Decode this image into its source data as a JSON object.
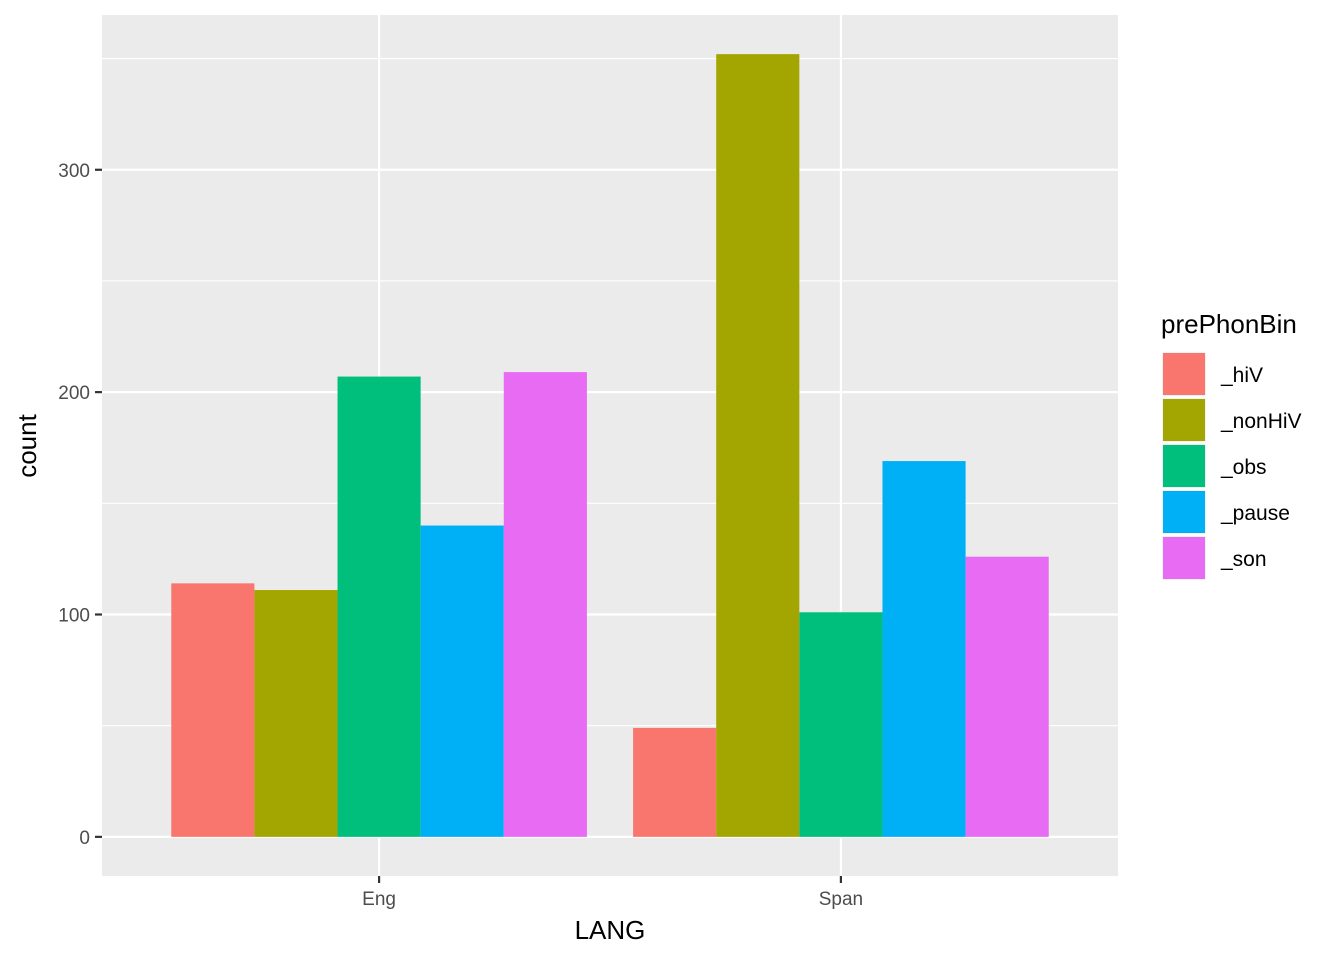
{
  "chart_data": {
    "type": "bar",
    "xlabel": "LANG",
    "ylabel": "count",
    "categories": [
      "Eng",
      "Span"
    ],
    "series": [
      {
        "name": "_hiV",
        "color": "#F8766D",
        "values": [
          114,
          49
        ]
      },
      {
        "name": "_nonHiV",
        "color": "#A3A500",
        "values": [
          111,
          352
        ]
      },
      {
        "name": "_obs",
        "color": "#00BF7D",
        "values": [
          207,
          101
        ]
      },
      {
        "name": "_pause",
        "color": "#00B0F6",
        "values": [
          140,
          169
        ]
      },
      {
        "name": "_son",
        "color": "#E76BF3",
        "values": [
          209,
          126
        ]
      }
    ],
    "ylim": [
      -17.6,
      369.6
    ],
    "yticks": [
      0,
      100,
      200,
      300
    ],
    "grid": true,
    "legend": {
      "title": "prePhonBin",
      "position": "right"
    },
    "colors": {
      "panel": "#EBEBEB",
      "grid": "#FFFFFF"
    }
  }
}
